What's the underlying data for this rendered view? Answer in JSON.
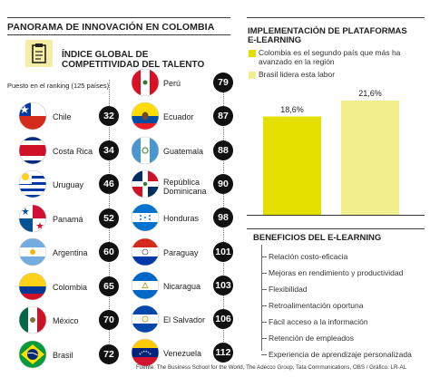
{
  "header": {
    "title": "PANORAMA DE INNOVACIÓN EN COLOMBIA",
    "subtitle": "ÍNDICE GLOBAL DE COMPETITIVIDAD DEL TALENTO",
    "rank_note": "Puesto en el ranking (125 países)",
    "icon": "clipboard-icon"
  },
  "rankings_left": [
    {
      "country": "Chile",
      "rank": "32",
      "flag": "chile-flag-icon"
    },
    {
      "country": "Costa Rica",
      "rank": "34",
      "flag": "costa-rica-flag-icon"
    },
    {
      "country": "Uruguay",
      "rank": "46",
      "flag": "uruguay-flag-icon"
    },
    {
      "country": "Panamá",
      "rank": "52",
      "flag": "panama-flag-icon"
    },
    {
      "country": "Argentina",
      "rank": "60",
      "flag": "argentina-flag-icon"
    },
    {
      "country": "Colombia",
      "rank": "65",
      "flag": "colombia-flag-icon"
    },
    {
      "country": "México",
      "rank": "70",
      "flag": "mexico-flag-icon"
    },
    {
      "country": "Brasil",
      "rank": "72",
      "flag": "brazil-flag-icon"
    }
  ],
  "rankings_right": [
    {
      "country": "Perú",
      "rank": "79",
      "flag": "peru-flag-icon"
    },
    {
      "country": "Ecuador",
      "rank": "87",
      "flag": "ecuador-flag-icon"
    },
    {
      "country": "Guatemala",
      "rank": "88",
      "flag": "guatemala-flag-icon"
    },
    {
      "country": "República Dominicana",
      "rank": "90",
      "flag": "dominican-republic-flag-icon"
    },
    {
      "country": "Honduras",
      "rank": "98",
      "flag": "honduras-flag-icon"
    },
    {
      "country": "Paraguay",
      "rank": "101",
      "flag": "paraguay-flag-icon"
    },
    {
      "country": "Nicaragua",
      "rank": "103",
      "flag": "nicaragua-flag-icon"
    },
    {
      "country": "El Salvador",
      "rank": "106",
      "flag": "el-salvador-flag-icon"
    },
    {
      "country": "Venezuela",
      "rank": "112",
      "flag": "venezuela-flag-icon"
    }
  ],
  "colors": {
    "colombia_bar": "#e3e000",
    "brazil_bar": "#f1ee8d",
    "rank_circle": "#111111"
  },
  "chart_data": {
    "type": "bar",
    "title": "IMPLEMENTACIÓN DE PLATAFORMAS E-LEARNING",
    "categories": [
      "Colombia es el segundo país que más ha avanzado en la región",
      "Brasil lidera esta labor"
    ],
    "values": [
      18.6,
      21.6
    ],
    "value_labels": [
      "18,6%",
      "21,6%"
    ],
    "ylim": [
      0,
      24
    ],
    "legend": "top",
    "grid": false
  },
  "benefits": {
    "title": "BENEFICIOS DEL E-LEARNING",
    "items": [
      "Relación costo-eficacia",
      "Mejoras en rendimiento y productividad",
      "Flexibilidad",
      "Retroalimentación oportuna",
      "Fácil acceso a la información",
      "Retención de empleados",
      "Experiencia de aprendizaje personalizada"
    ]
  },
  "footer": "Fuente: The Business School for the World, The Adecco Group, Tata Communications, OBS / Gráfico: LR-AL"
}
